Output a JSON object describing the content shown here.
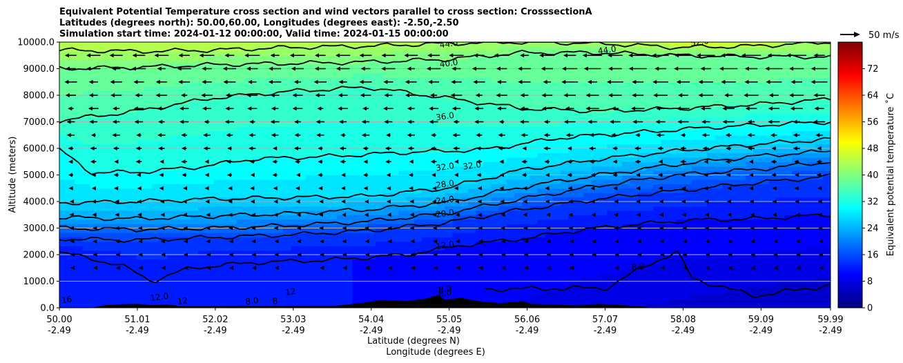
{
  "title_lines": [
    "Equivalent Potential Temperature cross section and wind vectors parallel to cross section: CrosssectionA",
    "Latitudes (degrees north): 50.00,60.00, Longitudes (degrees east): -2.50,-2.50",
    "Simulation start time: 2024-01-12 00:00:00, Valid time: 2024-01-15 00:00:00"
  ],
  "chart_data": {
    "type": "heatmap",
    "subtype": "cross-section filled contour with contour lines and wind vectors",
    "xlabel_lines": [
      "Latitude (degrees N)",
      "Longitude (degrees E)"
    ],
    "ylabel": "Altitude (meters)",
    "xlim": [
      50.0,
      59.99
    ],
    "ylim": [
      0,
      10000
    ],
    "x_ticks": [
      {
        "lat": "50.00",
        "lon": "-2.49",
        "value": 50.0
      },
      {
        "lat": "51.01",
        "lon": "-2.49",
        "value": 51.01
      },
      {
        "lat": "52.02",
        "lon": "-2.49",
        "value": 52.02
      },
      {
        "lat": "53.03",
        "lon": "-2.49",
        "value": 53.03
      },
      {
        "lat": "54.04",
        "lon": "-2.49",
        "value": 54.04
      },
      {
        "lat": "55.05",
        "lon": "-2.49",
        "value": 55.05
      },
      {
        "lat": "56.06",
        "lon": "-2.49",
        "value": 56.06
      },
      {
        "lat": "57.07",
        "lon": "-2.49",
        "value": 57.07
      },
      {
        "lat": "58.08",
        "lon": "-2.49",
        "value": 58.08
      },
      {
        "lat": "59.09",
        "lon": "-2.49",
        "value": 59.09
      },
      {
        "lat": "59.99",
        "lon": "-2.49",
        "value": 59.99
      }
    ],
    "y_ticks": [
      {
        "label": "0.0",
        "value": 0
      },
      {
        "label": "1000.0",
        "value": 1000
      },
      {
        "label": "2000.0",
        "value": 2000
      },
      {
        "label": "3000.0",
        "value": 3000
      },
      {
        "label": "4000.0",
        "value": 4000
      },
      {
        "label": "5000.0",
        "value": 5000
      },
      {
        "label": "6000.0",
        "value": 6000
      },
      {
        "label": "7000.0",
        "value": 7000
      },
      {
        "label": "8000.0",
        "value": 8000
      },
      {
        "label": "9000.0",
        "value": 9000
      },
      {
        "label": "10000.0",
        "value": 10000
      }
    ],
    "grid": "horizontal",
    "colorbar": {
      "label": "Equivalent potential temperature ˚C",
      "range": [
        0,
        80
      ],
      "ticks": [
        0,
        8,
        16,
        24,
        32,
        40,
        48,
        56,
        64,
        72
      ],
      "colormap": "jet"
    },
    "quiver_key": {
      "label": "50 m/s",
      "placement": "top-right"
    },
    "contour_levels": [
      {
        "value": 8,
        "points": [
          [
            55.5,
            700
          ],
          [
            57.1,
            750
          ],
          [
            57.6,
            1600
          ],
          [
            58.0,
            2100
          ],
          [
            58.2,
            1100
          ],
          [
            59.0,
            450
          ],
          [
            59.99,
            850
          ]
        ]
      },
      {
        "value": 12,
        "points": [
          [
            50.0,
            2100
          ],
          [
            50.8,
            1600
          ],
          [
            51.2,
            1000
          ],
          [
            51.7,
            1500
          ],
          [
            52.5,
            1700
          ],
          [
            53.5,
            1800
          ],
          [
            54.5,
            2000
          ],
          [
            55.2,
            2350
          ],
          [
            56.0,
            2600
          ],
          [
            56.8,
            2950
          ],
          [
            57.5,
            3150
          ],
          [
            58.2,
            3300
          ],
          [
            59.0,
            3350
          ],
          [
            59.99,
            3500
          ]
        ]
      },
      {
        "value": 16,
        "points": [
          [
            50.0,
            2600
          ],
          [
            51.0,
            2550
          ],
          [
            52.0,
            2650
          ],
          [
            53.0,
            2750
          ],
          [
            54.0,
            2900
          ],
          [
            55.0,
            3200
          ],
          [
            56.0,
            3700
          ],
          [
            57.0,
            4100
          ],
          [
            58.0,
            4400
          ],
          [
            59.0,
            4700
          ],
          [
            59.99,
            4950
          ]
        ]
      },
      {
        "value": 20,
        "points": [
          [
            50.0,
            3000
          ],
          [
            51.0,
            2950
          ],
          [
            52.0,
            3000
          ],
          [
            53.0,
            3100
          ],
          [
            54.0,
            3250
          ],
          [
            55.0,
            3550
          ],
          [
            56.0,
            4100
          ],
          [
            57.0,
            4600
          ],
          [
            58.0,
            5000
          ],
          [
            59.0,
            5200
          ],
          [
            59.99,
            5500
          ]
        ]
      },
      {
        "value": 24,
        "points": [
          [
            50.0,
            3400
          ],
          [
            51.0,
            3350
          ],
          [
            52.0,
            3450
          ],
          [
            53.0,
            3550
          ],
          [
            54.0,
            3700
          ],
          [
            55.0,
            3950
          ],
          [
            56.0,
            4550
          ],
          [
            57.0,
            5000
          ],
          [
            58.0,
            5400
          ],
          [
            59.0,
            5700
          ],
          [
            59.99,
            5900
          ]
        ]
      },
      {
        "value": 28,
        "points": [
          [
            50.0,
            3950
          ],
          [
            51.0,
            4000
          ],
          [
            52.0,
            4100
          ],
          [
            53.0,
            4150
          ],
          [
            54.0,
            4200
          ],
          [
            55.0,
            4500
          ],
          [
            56.0,
            5200
          ],
          [
            57.0,
            5600
          ],
          [
            58.0,
            5900
          ],
          [
            59.0,
            6150
          ],
          [
            59.99,
            6350
          ]
        ]
      },
      {
        "value": 32,
        "points": [
          [
            50.0,
            5950
          ],
          [
            50.4,
            5100
          ],
          [
            51.0,
            5100
          ],
          [
            51.8,
            5300
          ],
          [
            52.5,
            5600
          ],
          [
            53.5,
            5700
          ],
          [
            54.5,
            5850
          ],
          [
            55.5,
            5950
          ],
          [
            56.5,
            6400
          ],
          [
            57.5,
            6600
          ],
          [
            58.5,
            6800
          ],
          [
            59.99,
            7000
          ]
        ]
      },
      {
        "value": 36,
        "points": [
          [
            50.0,
            7050
          ],
          [
            51.0,
            7400
          ],
          [
            52.0,
            7900
          ],
          [
            53.0,
            8150
          ],
          [
            54.0,
            8300
          ],
          [
            55.0,
            7900
          ],
          [
            56.0,
            7500
          ],
          [
            57.0,
            7400
          ],
          [
            58.0,
            7500
          ],
          [
            59.0,
            7650
          ],
          [
            59.99,
            7850
          ]
        ]
      },
      {
        "value": 40,
        "points": [
          [
            50.0,
            9000
          ],
          [
            51.0,
            9050
          ],
          [
            52.0,
            9150
          ],
          [
            53.0,
            9200
          ],
          [
            54.0,
            9250
          ],
          [
            55.0,
            9350
          ],
          [
            56.0,
            9600
          ],
          [
            57.0,
            9600
          ],
          [
            58.0,
            9500
          ],
          [
            59.0,
            9450
          ],
          [
            59.99,
            9450
          ]
        ]
      },
      {
        "value": 44,
        "points": [
          [
            50.0,
            9700
          ],
          [
            51.0,
            9650
          ],
          [
            52.0,
            9700
          ],
          [
            53.0,
            9800
          ],
          [
            54.0,
            9850
          ],
          [
            55.0,
            9950
          ],
          [
            56.0,
            10000
          ],
          [
            57.0,
            9950
          ],
          [
            58.0,
            9800
          ],
          [
            59.0,
            9850
          ],
          [
            59.99,
            10000
          ]
        ]
      }
    ],
    "contour_labels": [
      "44.0",
      "40.0",
      "36.0",
      "32.0",
      "32.0",
      "28.0",
      "24.0",
      "20.0",
      "12.0",
      "8.0",
      "8.0",
      "44.0",
      "12.0",
      "8.0",
      "16",
      "12",
      "12",
      "8",
      "8.0",
      "52.0"
    ],
    "theta_e_profile": {
      "note": "equivalent potential temperature field along section, ˚C",
      "lat": [
        50.0,
        52.5,
        55.0,
        57.5,
        59.99
      ],
      "surface": [
        14,
        13,
        11,
        8,
        6
      ],
      "top_10km": [
        42,
        44,
        45,
        47,
        52
      ]
    },
    "wind_field": {
      "note": "along-section wind components (m/s), strongest westward aloft",
      "levels_m": [
        500,
        1000,
        1500,
        2000,
        2500,
        3000,
        3500,
        4000,
        4500,
        5000,
        5500,
        6000,
        6500,
        7000,
        7500,
        8000,
        8500,
        9000,
        9500
      ],
      "max_speed_ms": 20
    }
  }
}
